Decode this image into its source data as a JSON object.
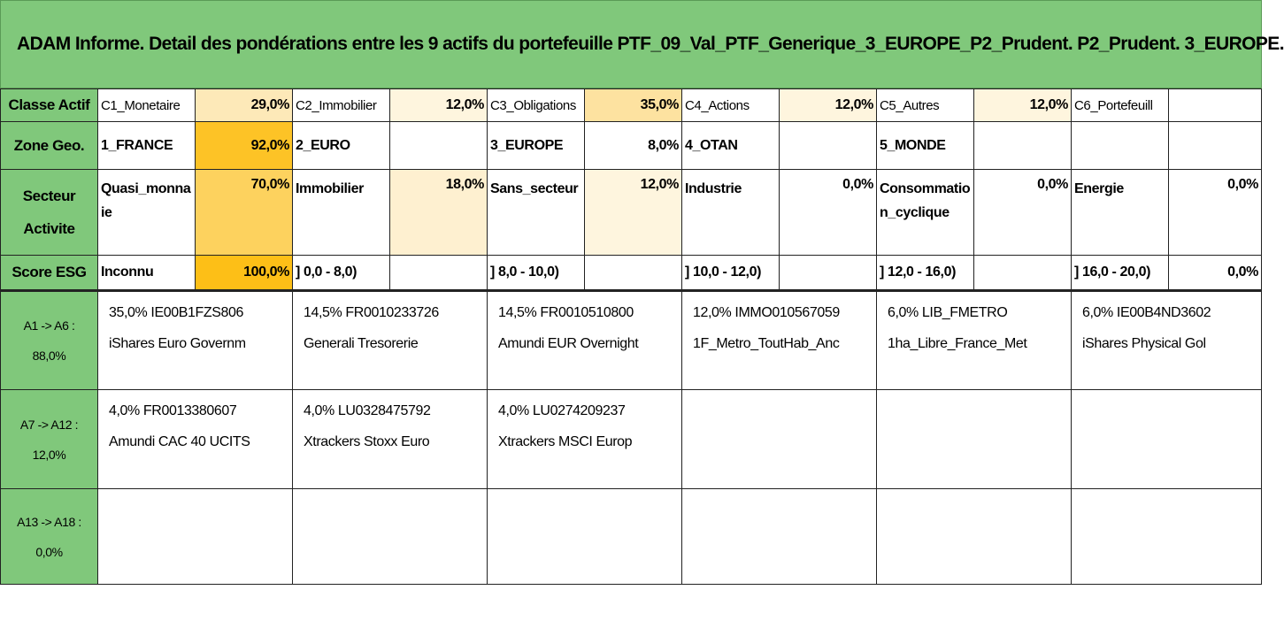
{
  "title": "ADAM Informe. Detail des pondérations entre les 9 actifs du portefeuille PTF_09_Val_PTF_Generique_3_EUROPE_P2_Prudent. P2_Prudent. 3_EUROPE.",
  "rows": {
    "classe": {
      "header": "Classe Actif",
      "cells": [
        {
          "label": "C1_Monetaire",
          "pct": "29,0%",
          "color": "#fde9b8"
        },
        {
          "label": "C2_Immobilier",
          "pct": "12,0%",
          "color": "#fef5de"
        },
        {
          "label": "C3_Obligations",
          "pct": "35,0%",
          "color": "#fde2a0"
        },
        {
          "label": "C4_Actions",
          "pct": "12,0%",
          "color": "#fef5de"
        },
        {
          "label": "C5_Autres",
          "pct": "12,0%",
          "color": "#fef5de"
        },
        {
          "label": "C6_Portefeuill",
          "pct": "",
          "color": "#ffffff"
        }
      ]
    },
    "zone": {
      "header": "Zone Geo.",
      "cells": [
        {
          "label": "1_FRANCE",
          "pct": "92,0%",
          "color": "#fdc326"
        },
        {
          "label": "2_EURO",
          "pct": "",
          "color": "#ffffff"
        },
        {
          "label": "3_EUROPE",
          "pct": "8,0%",
          "color": "#ffffff"
        },
        {
          "label": "4_OTAN",
          "pct": "",
          "color": "#ffffff"
        },
        {
          "label": "5_MONDE",
          "pct": "",
          "color": "#ffffff"
        },
        {
          "label": "",
          "pct": "",
          "color": "#ffffff"
        }
      ]
    },
    "secteur": {
      "header_line1": "Secteur",
      "header_line2": "Activite",
      "cells": [
        {
          "label": "Quasi_monnaie",
          "pct": "70,0%",
          "color": "#fdd25e"
        },
        {
          "label": "Immobilier",
          "pct": "18,0%",
          "color": "#fef0d0"
        },
        {
          "label": "Sans_secteur",
          "pct": "12,0%",
          "color": "#fef5de"
        },
        {
          "label": "Industrie",
          "pct": "0,0%",
          "color": "#ffffff"
        },
        {
          "label": "Consommation_cyclique",
          "pct": "0,0%",
          "color": "#ffffff"
        },
        {
          "label": "Energie",
          "pct": "0,0%",
          "color": "#ffffff"
        }
      ]
    },
    "esg": {
      "header": "Score ESG",
      "cells": [
        {
          "label": "Inconnu",
          "pct": "100,0%",
          "color": "#fdbf17"
        },
        {
          "label": "] 0,0 - 8,0)",
          "pct": "",
          "color": "#ffffff"
        },
        {
          "label": "] 8,0 - 10,0)",
          "pct": "",
          "color": "#ffffff"
        },
        {
          "label": "] 10,0 - 12,0)",
          "pct": "",
          "color": "#ffffff"
        },
        {
          "label": "] 12,0 - 16,0)",
          "pct": "",
          "color": "#ffffff"
        },
        {
          "label": "] 16,0 - 20,0)",
          "pct": "0,0%",
          "color": "#ffffff"
        }
      ]
    }
  },
  "asset_rows": [
    {
      "header_line1": "A1 -> A6 :",
      "header_line2": "88,0%",
      "assets": [
        {
          "line1": "35,0% IE00B1FZS806",
          "line2": "iShares Euro Governm"
        },
        {
          "line1": "14,5% FR0010233726",
          "line2": "Generali Tresorerie"
        },
        {
          "line1": "14,5% FR0010510800",
          "line2": "Amundi EUR Overnight"
        },
        {
          "line1": "12,0% IMMO010567059",
          "line2": "1F_Metro_ToutHab_Anc"
        },
        {
          "line1": "6,0% LIB_FMETRO",
          "line2": "1ha_Libre_France_Met"
        },
        {
          "line1": "6,0% IE00B4ND3602",
          "line2": "iShares Physical Gol"
        }
      ]
    },
    {
      "header_line1": "A7 -> A12 :",
      "header_line2": "12,0%",
      "assets": [
        {
          "line1": "4,0% FR0013380607",
          "line2": "Amundi CAC 40 UCITS"
        },
        {
          "line1": "4,0% LU0328475792",
          "line2": "Xtrackers Stoxx Euro"
        },
        {
          "line1": "4,0% LU0274209237",
          "line2": "Xtrackers MSCI Europ"
        },
        {
          "line1": "",
          "line2": ""
        },
        {
          "line1": "",
          "line2": ""
        },
        {
          "line1": "",
          "line2": ""
        }
      ]
    },
    {
      "header_line1": "A13 -> A18 :",
      "header_line2": "0,0%",
      "assets": [
        {
          "line1": "",
          "line2": ""
        },
        {
          "line1": "",
          "line2": ""
        },
        {
          "line1": "",
          "line2": ""
        },
        {
          "line1": "",
          "line2": ""
        },
        {
          "line1": "",
          "line2": ""
        },
        {
          "line1": "",
          "line2": ""
        }
      ]
    }
  ]
}
